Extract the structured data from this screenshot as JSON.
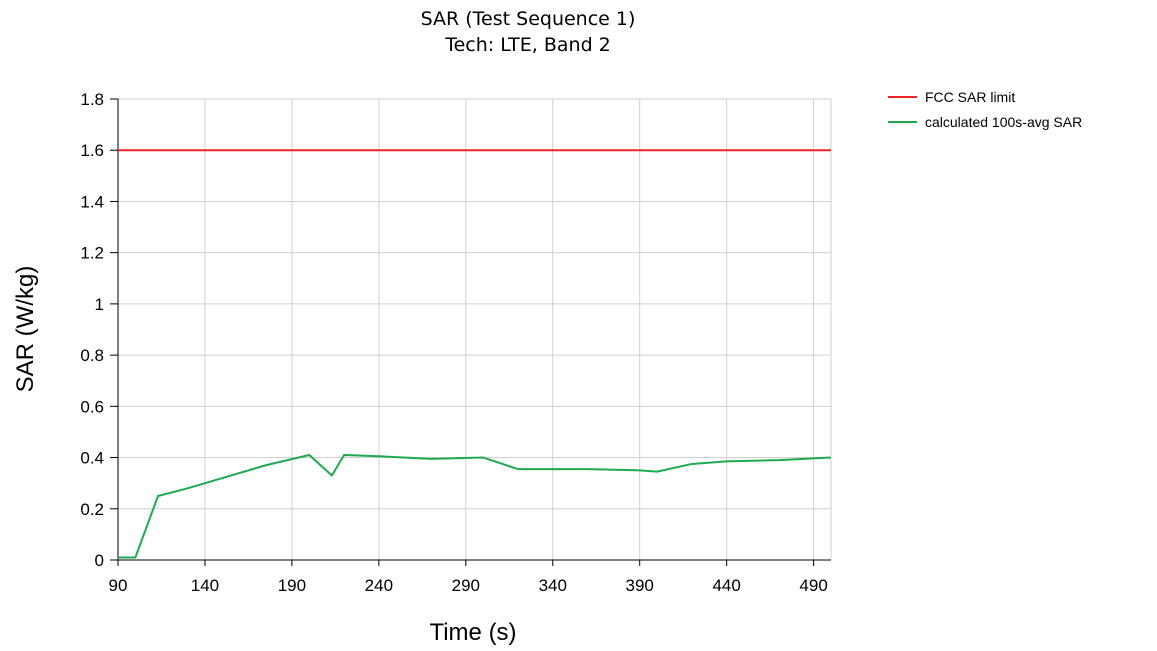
{
  "chart_data": {
    "type": "line",
    "title": "SAR (Test Sequence 1)",
    "subtitle": "Tech: LTE, Band 2",
    "xlabel": "Time (s)",
    "ylabel": "SAR (W/kg)",
    "xlim": [
      90,
      500
    ],
    "ylim": [
      0,
      1.8
    ],
    "xticks": [
      90,
      140,
      190,
      240,
      290,
      340,
      390,
      440,
      490
    ],
    "yticks": [
      0,
      0.2,
      0.4,
      0.6,
      0.8,
      1,
      1.2,
      1.4,
      1.6,
      1.8
    ],
    "ytick_labels": [
      "0",
      "0.2",
      "0.4",
      "0.6",
      "0.8",
      "1",
      "1.2",
      "1.4",
      "1.6",
      "1.8"
    ],
    "grid": true,
    "legend_position": "top-right",
    "series": [
      {
        "name": "FCC SAR limit",
        "color": "#e8262b",
        "x": [
          90,
          500
        ],
        "y": [
          1.6,
          1.6
        ]
      },
      {
        "name": "calculated 100s-avg SAR",
        "color": "#1faa52",
        "x": [
          90,
          100,
          113,
          130,
          150,
          175,
          200,
          213,
          220,
          240,
          270,
          300,
          320,
          360,
          390,
          400,
          420,
          440,
          470,
          500
        ],
        "y": [
          0.01,
          0.01,
          0.25,
          0.28,
          0.32,
          0.37,
          0.41,
          0.33,
          0.41,
          0.405,
          0.395,
          0.4,
          0.355,
          0.355,
          0.35,
          0.345,
          0.375,
          0.385,
          0.39,
          0.4
        ]
      }
    ]
  }
}
